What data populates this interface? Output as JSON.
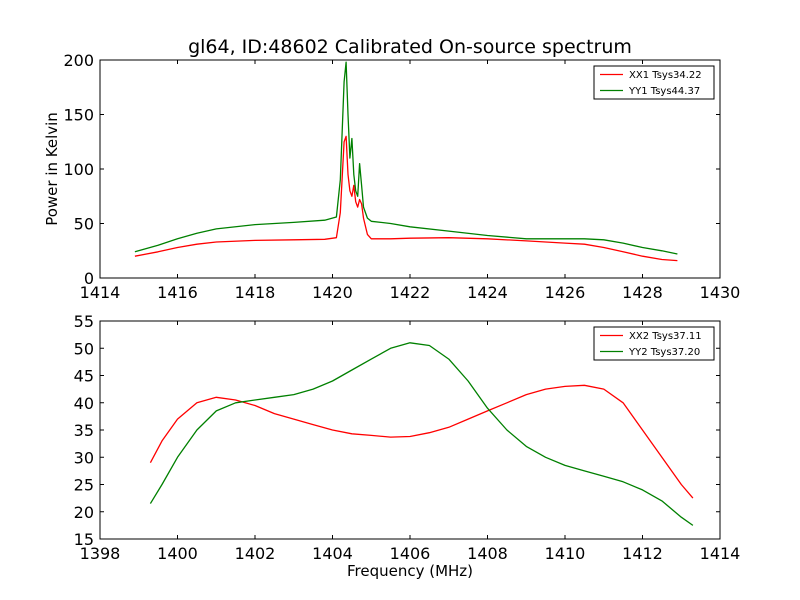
{
  "figure": {
    "title": "gl64, ID:48602 Calibrated On-source spectrum",
    "background": "#ffffff"
  },
  "chart_data": [
    {
      "type": "line",
      "title": "gl64, ID:48602 Calibrated On-source spectrum",
      "xlabel": "",
      "ylabel": "Power in Kelvin",
      "xlim": [
        1414,
        1430
      ],
      "ylim": [
        0,
        200
      ],
      "xticks": [
        1414,
        1416,
        1418,
        1420,
        1422,
        1424,
        1426,
        1428,
        1430
      ],
      "yticks": [
        0,
        50,
        100,
        150,
        200
      ],
      "grid": false,
      "legend_position": "top-right",
      "series": [
        {
          "name": "XX1 Tsys34.22",
          "color": "#ff0000",
          "x": [
            1414.9,
            1415.5,
            1416.0,
            1416.5,
            1417.0,
            1418.0,
            1419.0,
            1419.8,
            1420.1,
            1420.2,
            1420.3,
            1420.35,
            1420.4,
            1420.45,
            1420.5,
            1420.55,
            1420.6,
            1420.65,
            1420.7,
            1420.75,
            1420.8,
            1420.9,
            1421.0,
            1421.5,
            1422.0,
            1423.0,
            1424.0,
            1425.0,
            1426.0,
            1426.5,
            1427.0,
            1427.5,
            1428.0,
            1428.5,
            1428.9
          ],
          "y": [
            20,
            24,
            28,
            31,
            33,
            34.5,
            35,
            35.5,
            37,
            60,
            125,
            130,
            95,
            80,
            75,
            85,
            70,
            65,
            72,
            68,
            55,
            40,
            36,
            36,
            36.5,
            37,
            36,
            34,
            32,
            31,
            28,
            24,
            20,
            17,
            16
          ]
        },
        {
          "name": "YY1 Tsys44.37",
          "color": "#008000",
          "x": [
            1414.9,
            1415.5,
            1416.0,
            1416.5,
            1417.0,
            1418.0,
            1419.0,
            1419.8,
            1420.1,
            1420.2,
            1420.3,
            1420.35,
            1420.4,
            1420.45,
            1420.5,
            1420.55,
            1420.6,
            1420.65,
            1420.7,
            1420.75,
            1420.8,
            1420.9,
            1421.0,
            1421.5,
            1422.0,
            1423.0,
            1424.0,
            1425.0,
            1426.0,
            1426.5,
            1427.0,
            1427.5,
            1428.0,
            1428.5,
            1428.9
          ],
          "y": [
            24,
            30,
            36,
            41,
            45,
            49,
            51,
            53,
            56,
            90,
            180,
            198,
            150,
            110,
            128,
            95,
            80,
            75,
            105,
            85,
            65,
            55,
            52,
            50,
            47,
            43,
            39,
            36,
            36,
            36,
            35,
            32,
            28,
            25,
            22
          ]
        }
      ]
    },
    {
      "type": "line",
      "title": "",
      "xlabel": "Frequency (MHz)",
      "ylabel": "",
      "xlim": [
        1398,
        1414
      ],
      "ylim": [
        15,
        55
      ],
      "xticks": [
        1398,
        1400,
        1402,
        1404,
        1406,
        1408,
        1410,
        1412,
        1414
      ],
      "yticks": [
        15,
        20,
        25,
        30,
        35,
        40,
        45,
        50,
        55
      ],
      "grid": false,
      "legend_position": "top-right",
      "series": [
        {
          "name": "XX2 Tsys37.11",
          "color": "#ff0000",
          "x": [
            1399.3,
            1399.6,
            1400.0,
            1400.5,
            1401.0,
            1401.5,
            1402.0,
            1402.5,
            1403.0,
            1403.5,
            1404.0,
            1404.5,
            1405.0,
            1405.5,
            1406.0,
            1406.5,
            1407.0,
            1407.5,
            1408.0,
            1408.5,
            1409.0,
            1409.5,
            1410.0,
            1410.5,
            1411.0,
            1411.5,
            1412.0,
            1412.5,
            1413.0,
            1413.3
          ],
          "y": [
            29,
            33,
            37,
            40,
            41,
            40.5,
            39.5,
            38,
            37,
            36,
            35,
            34.3,
            34,
            33.7,
            33.8,
            34.5,
            35.5,
            37,
            38.5,
            40,
            41.5,
            42.5,
            43,
            43.2,
            42.5,
            40,
            35,
            30,
            25,
            22.5
          ]
        },
        {
          "name": "YY2 Tsys37.20",
          "color": "#008000",
          "x": [
            1399.3,
            1399.6,
            1400.0,
            1400.5,
            1401.0,
            1401.5,
            1402.0,
            1402.5,
            1403.0,
            1403.5,
            1404.0,
            1404.5,
            1405.0,
            1405.5,
            1406.0,
            1406.5,
            1407.0,
            1407.5,
            1408.0,
            1408.5,
            1409.0,
            1409.5,
            1410.0,
            1410.5,
            1411.0,
            1411.5,
            1412.0,
            1412.5,
            1413.0,
            1413.3
          ],
          "y": [
            21.5,
            25,
            30,
            35,
            38.5,
            40,
            40.5,
            41,
            41.5,
            42.5,
            44,
            46,
            48,
            50,
            51,
            50.5,
            48,
            44,
            39,
            35,
            32,
            30,
            28.5,
            27.5,
            26.5,
            25.5,
            24,
            22,
            19,
            17.5
          ]
        }
      ]
    }
  ]
}
